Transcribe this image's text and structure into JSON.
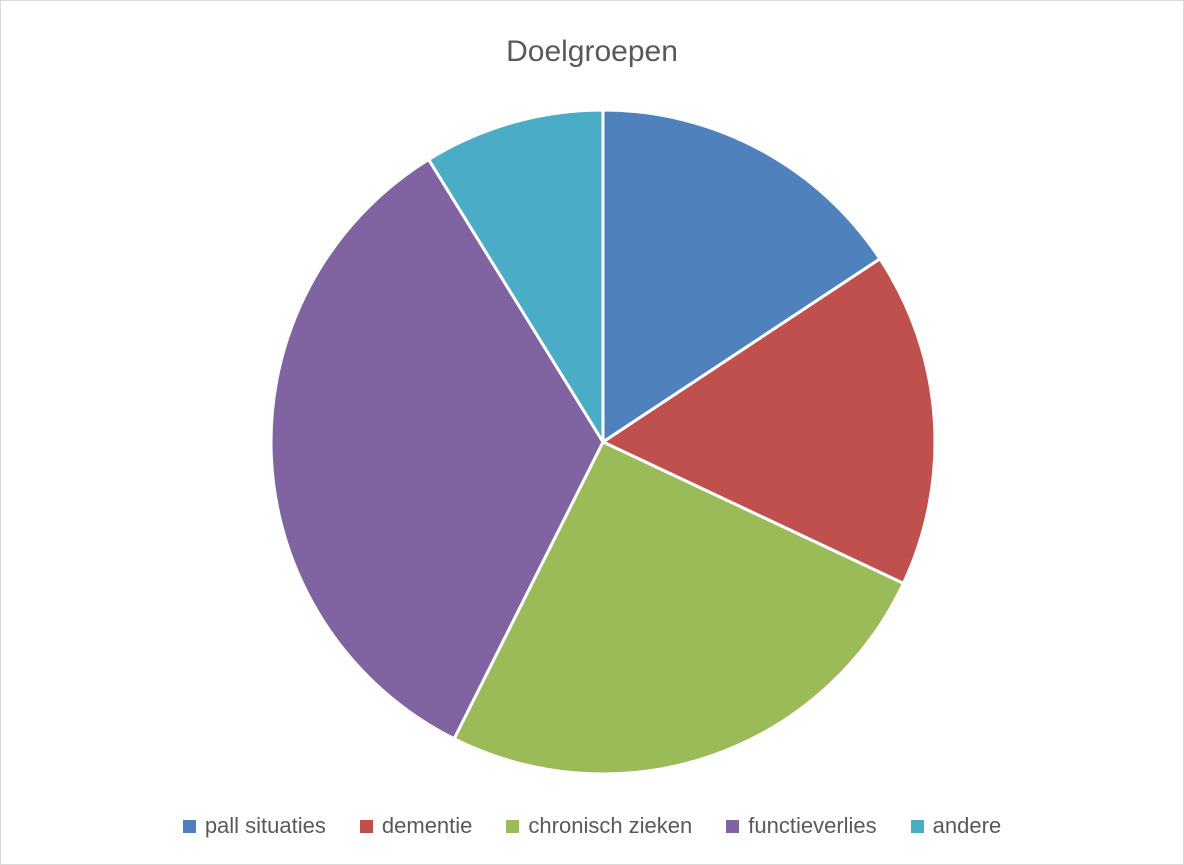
{
  "chart_data": {
    "type": "pie",
    "title": "Doelgroepen",
    "categories": [
      "pall situaties",
      "dementie",
      "chronisch zieken",
      "functieverlies",
      "andere"
    ],
    "values": [
      15.7,
      16.3,
      25.4,
      33.8,
      8.8
    ],
    "colors": [
      "#4F81BD",
      "#C0504D",
      "#9BBB59",
      "#8064A2",
      "#4BACC6"
    ],
    "legend_position": "bottom",
    "start_angle": "12 o'clock",
    "direction": "clockwise"
  }
}
